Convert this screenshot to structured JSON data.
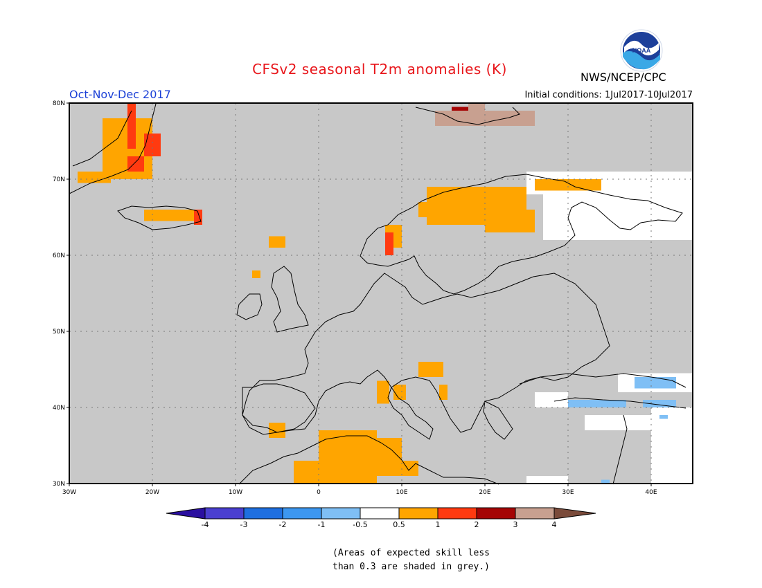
{
  "header": {
    "title": "CFSv2 seasonal T2m anomalies (K)",
    "period": "Oct-Nov-Dec 2017",
    "initial_conditions": "Initial conditions: 1Jul2017-10Jul2017",
    "agency": "NWS/NCEP/CPC",
    "logo_text": "NOAA"
  },
  "map": {
    "lon_labels": [
      "30W",
      "20W",
      "10W",
      "0",
      "10E",
      "20E",
      "30E",
      "40E"
    ],
    "lat_labels": [
      "80N",
      "70N",
      "60N",
      "50N",
      "40N",
      "30N"
    ],
    "grid": true,
    "background_shade": "#c8c8c8",
    "grid_note": "grey shading = skill < 0.3"
  },
  "colorbar": {
    "tick_labels": [
      "-4",
      "-3",
      "-2",
      "-1",
      "-0.5",
      "0.5",
      "1",
      "2",
      "3",
      "4"
    ],
    "colors": [
      "#2a0fa0",
      "#4a3fd0",
      "#1f6fe0",
      "#3d97f0",
      "#7fbff5",
      "#ffffff",
      "#ffa500",
      "#ff3a10",
      "#a50505",
      "#c8a090",
      "#7a4a3a"
    ]
  },
  "caption": {
    "line1": "(Areas of expected skill less",
    "line2": "than 0.3 are shaded in grey.)"
  }
}
